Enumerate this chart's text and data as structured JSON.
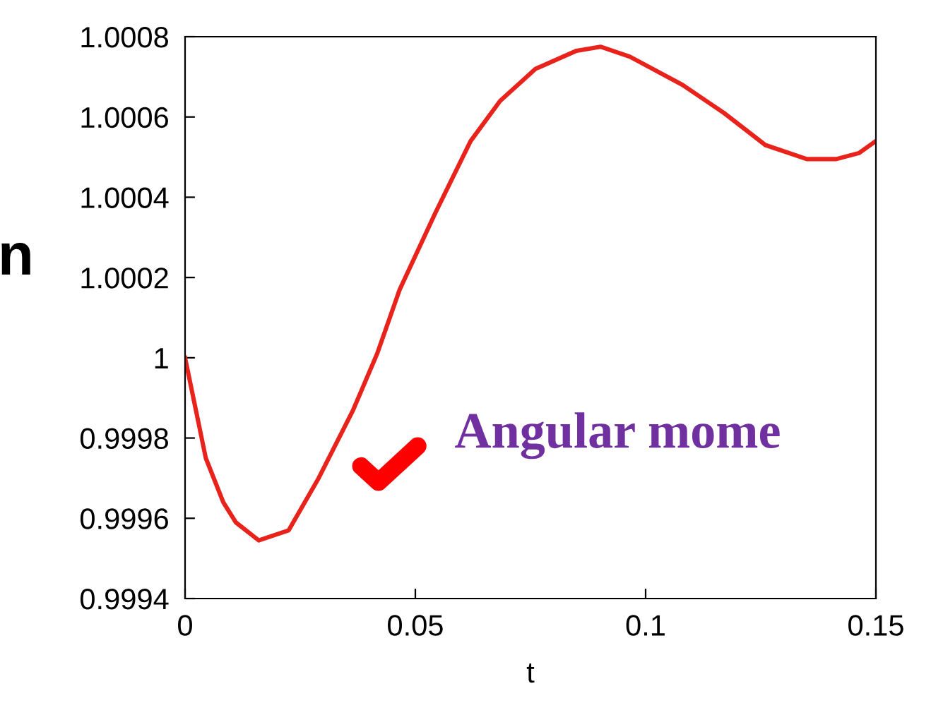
{
  "chart_data": {
    "type": "line",
    "xlabel": "t",
    "ylabel": "n",
    "x": [
      0,
      0.0045,
      0.0083,
      0.011,
      0.016,
      0.0225,
      0.029,
      0.0365,
      0.0417,
      0.0466,
      0.0543,
      0.062,
      0.0684,
      0.0761,
      0.085,
      0.0902,
      0.0966,
      0.108,
      0.117,
      0.126,
      0.135,
      0.1414,
      0.1463,
      0.15
    ],
    "series": [
      {
        "color": "#e8231b",
        "values": [
          1.0,
          0.99975,
          0.99964,
          0.99959,
          0.999545,
          0.99957,
          0.9997,
          0.99987,
          1.00001,
          1.00017,
          1.00036,
          1.00054,
          1.00064,
          1.00072,
          1.000765,
          1.000775,
          1.00075,
          1.00068,
          1.00061,
          1.00053,
          1.000495,
          1.000495,
          1.00051,
          1.00054
        ]
      }
    ],
    "xlim": [
      0,
      0.15
    ],
    "ylim": [
      0.9994,
      1.0008
    ],
    "xticks": [
      0,
      0.05,
      0.1,
      0.15
    ],
    "yticks": [
      0.9994,
      0.9996,
      0.9998,
      1,
      1.0002,
      1.0004,
      1.0006,
      1.0008
    ],
    "annotations": [
      "Angular mome"
    ],
    "grid": false,
    "marker": "none",
    "line_style": "solid"
  }
}
